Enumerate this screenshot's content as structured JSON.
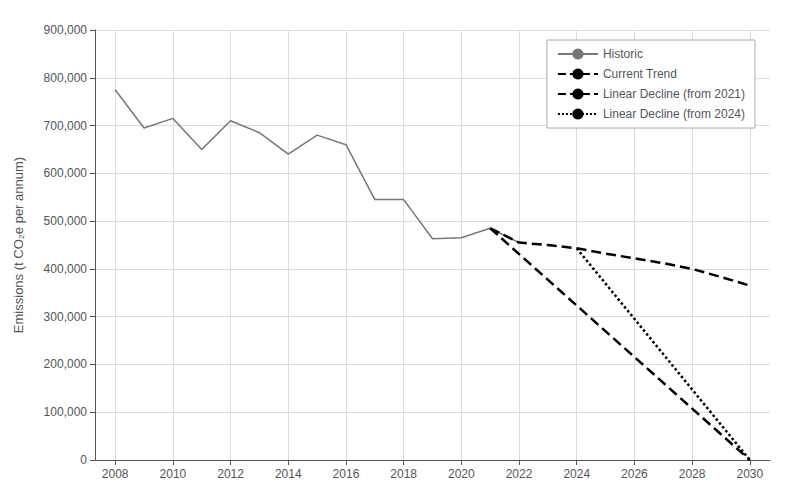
{
  "chart_data": {
    "type": "line",
    "ylabel": "Emissions (t CO₂e per annum)",
    "series": [
      {
        "name": "Historic",
        "color": "#777777",
        "line_style": "solid",
        "x": [
          2008,
          2009,
          2010,
          2011,
          2012,
          2013,
          2014,
          2015,
          2016,
          2017,
          2018,
          2019,
          2020,
          2021,
          2022
        ],
        "values": [
          775000,
          695000,
          715000,
          650000,
          710000,
          685000,
          640000,
          680000,
          660000,
          545000,
          545000,
          463000,
          465000,
          485000,
          455000
        ]
      },
      {
        "name": "Current Trend",
        "color": "#000000",
        "line_style": "dashed",
        "x": [
          2021,
          2022,
          2023,
          2024,
          2025,
          2026,
          2027,
          2028,
          2029,
          2030
        ],
        "values": [
          485000,
          455000,
          450000,
          443000,
          432000,
          422000,
          412000,
          400000,
          383000,
          365000
        ]
      },
      {
        "name": "Linear Decline (from 2021)",
        "color": "#000000",
        "line_style": "dashed",
        "x": [
          2021,
          2030
        ],
        "values": [
          485000,
          0
        ]
      },
      {
        "name": "Linear Decline (from 2024)",
        "color": "#000000",
        "line_style": "dotted",
        "x": [
          2024,
          2030
        ],
        "values": [
          443000,
          0
        ]
      }
    ],
    "xlim": [
      2007.3,
      2030.7
    ],
    "xticks": [
      2008,
      2010,
      2012,
      2014,
      2016,
      2018,
      2020,
      2022,
      2024,
      2026,
      2028,
      2030
    ],
    "ylim": [
      0,
      900000
    ],
    "yticks": [
      0,
      {
        "value": 100000,
        "label": "100,000"
      },
      {
        "value": 200000,
        "label": "200,000"
      },
      {
        "value": 300000,
        "label": "300,000"
      },
      {
        "value": 400000,
        "label": "400,000"
      },
      {
        "value": 500000,
        "label": "500,000"
      },
      {
        "value": 600000,
        "label": "600,000"
      },
      {
        "value": 700000,
        "label": "700,000"
      },
      {
        "value": 800000,
        "label": "800,000"
      },
      {
        "value": 900000,
        "label": "900,000"
      }
    ],
    "grid": true,
    "legend": "upper right"
  }
}
